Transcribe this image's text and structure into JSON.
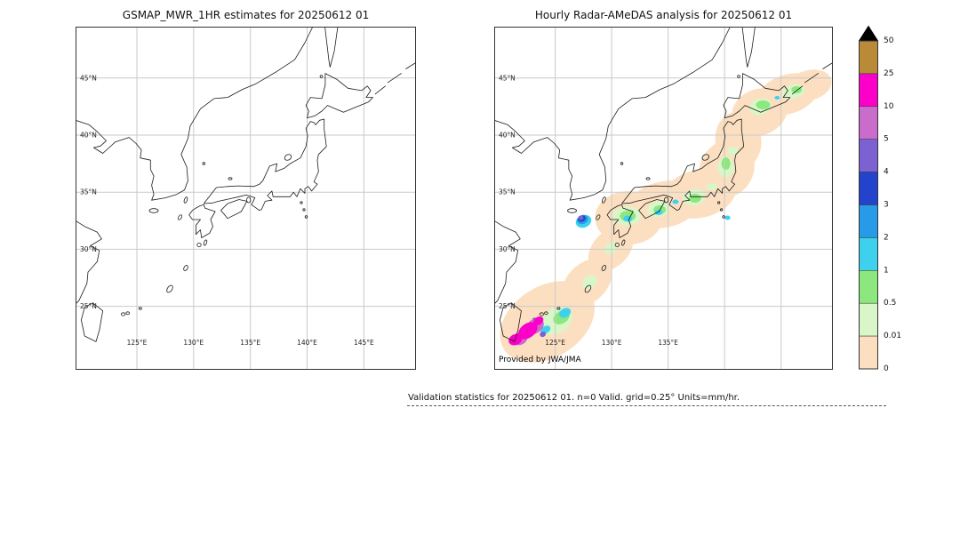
{
  "figure": {
    "caption": "Validation statistics for 20250612 01. n=0 Valid. grid=0.25° Units=mm/hr."
  },
  "panels": [
    {
      "title": "GSMAP_MWR_1HR estimates for 20250612 01",
      "annotation": "",
      "grid_lons": [
        125,
        130,
        135,
        140,
        145
      ],
      "grid_lats": [
        25,
        30,
        35,
        40,
        45
      ],
      "lon_ticks": [
        {
          "value": 125,
          "label": "125°E"
        },
        {
          "value": 130,
          "label": "130°E"
        },
        {
          "value": 135,
          "label": "135°E"
        },
        {
          "value": 140,
          "label": "140°E"
        },
        {
          "value": 145,
          "label": "145°E"
        }
      ],
      "lat_ticks": [
        {
          "value": 45,
          "label": "45°N"
        },
        {
          "value": 40,
          "label": "40°N"
        },
        {
          "value": 35,
          "label": "35°N"
        },
        {
          "value": 30,
          "label": "30°N"
        },
        {
          "value": 25,
          "label": "25°N"
        }
      ],
      "show_precip": false
    },
    {
      "title": "Hourly Radar-AMeDAS analysis for 20250612 01",
      "annotation": "Provided by JWA/JMA",
      "grid_lons": [
        125,
        130,
        135,
        140,
        145
      ],
      "grid_lats": [
        25,
        30,
        35,
        40,
        45
      ],
      "lon_ticks": [
        {
          "value": 125,
          "label": "125°E"
        },
        {
          "value": 130,
          "label": "130°E"
        },
        {
          "value": 135,
          "label": "135°E"
        }
      ],
      "lat_ticks": [
        {
          "value": 45,
          "label": "45°N"
        },
        {
          "value": 40,
          "label": "40°N"
        },
        {
          "value": 35,
          "label": "35°N"
        },
        {
          "value": 30,
          "label": "30°N"
        },
        {
          "value": 25,
          "label": "25°N"
        }
      ],
      "show_precip": true
    }
  ],
  "colorbar": {
    "labels": [
      "50",
      "25",
      "10",
      "5",
      "4",
      "3",
      "2",
      "1",
      "0.5",
      "0.01",
      "0"
    ],
    "colors_top_to_bottom": [
      "#b98a38",
      "#fa00c8",
      "#ca6ccc",
      "#7b61d1",
      "#2443cd",
      "#279be8",
      "#3ed1ee",
      "#8ce87e",
      "#d9f6c8",
      "#fcdfc0"
    ],
    "over_range_color": "#000000"
  },
  "chart_data": [
    {
      "type": "heatmap",
      "subtype": "geographic precipitation map",
      "title": "GSMAP_MWR_1HR estimates for 20250612 01",
      "lon_ticks": [
        "125°E",
        "130°E",
        "135°E",
        "140°E",
        "145°E"
      ],
      "lat_ticks": [
        "25°N",
        "30°N",
        "35°N",
        "40°N",
        "45°N"
      ],
      "lon_range_deg_e": [
        119.6,
        149.6
      ],
      "lat_range_deg_n": [
        19.4,
        49.5
      ],
      "grid": true,
      "values": "no precipitation shading plotted (no valid satellite estimates this hour)"
    },
    {
      "type": "heatmap",
      "subtype": "geographic precipitation map",
      "title": "Hourly Radar-AMeDAS analysis for 20250612 01",
      "annotation": "Provided by JWA/JMA",
      "lon_ticks": [
        "125°E",
        "130°E",
        "135°E"
      ],
      "lat_ticks": [
        "25°N",
        "30°N",
        "35°N",
        "40°N",
        "45°N"
      ],
      "lon_range_deg_e": [
        119.6,
        149.6
      ],
      "lat_range_deg_n": [
        19.4,
        49.5
      ],
      "grid": true,
      "features": [
        {
          "area": "broad band along the archipelago from the Ryukyu Islands through Kyushu, Shikoku, Honshu to eastern Hokkaido",
          "intensity_mm_hr": "0.01-0.5 with embedded 0.5-1 patches"
        },
        {
          "area": "cell west of Kyushu near 128°E 33°N",
          "intensity_mm_hr": "up to 4-5"
        },
        {
          "area": "cluster east of Taiwan / Yaeyama Islands near 121-125°E 22-25°N",
          "intensity_mm_hr": "up to 10-25"
        }
      ]
    },
    {
      "type": "colorbar",
      "orientation": "vertical",
      "units": "mm/hr",
      "levels_bottom_to_top": [
        0,
        0.01,
        0.5,
        1,
        2,
        3,
        4,
        5,
        10,
        25,
        50
      ],
      "colors_bottom_to_top": [
        "#fcdfc0",
        "#d9f6c8",
        "#8ce87e",
        "#3ed1ee",
        "#279be8",
        "#2443cd",
        "#7b61d1",
        "#ca6ccc",
        "#fa00c8",
        "#b98a38"
      ],
      "over_range": "black triangle above 50"
    }
  ]
}
